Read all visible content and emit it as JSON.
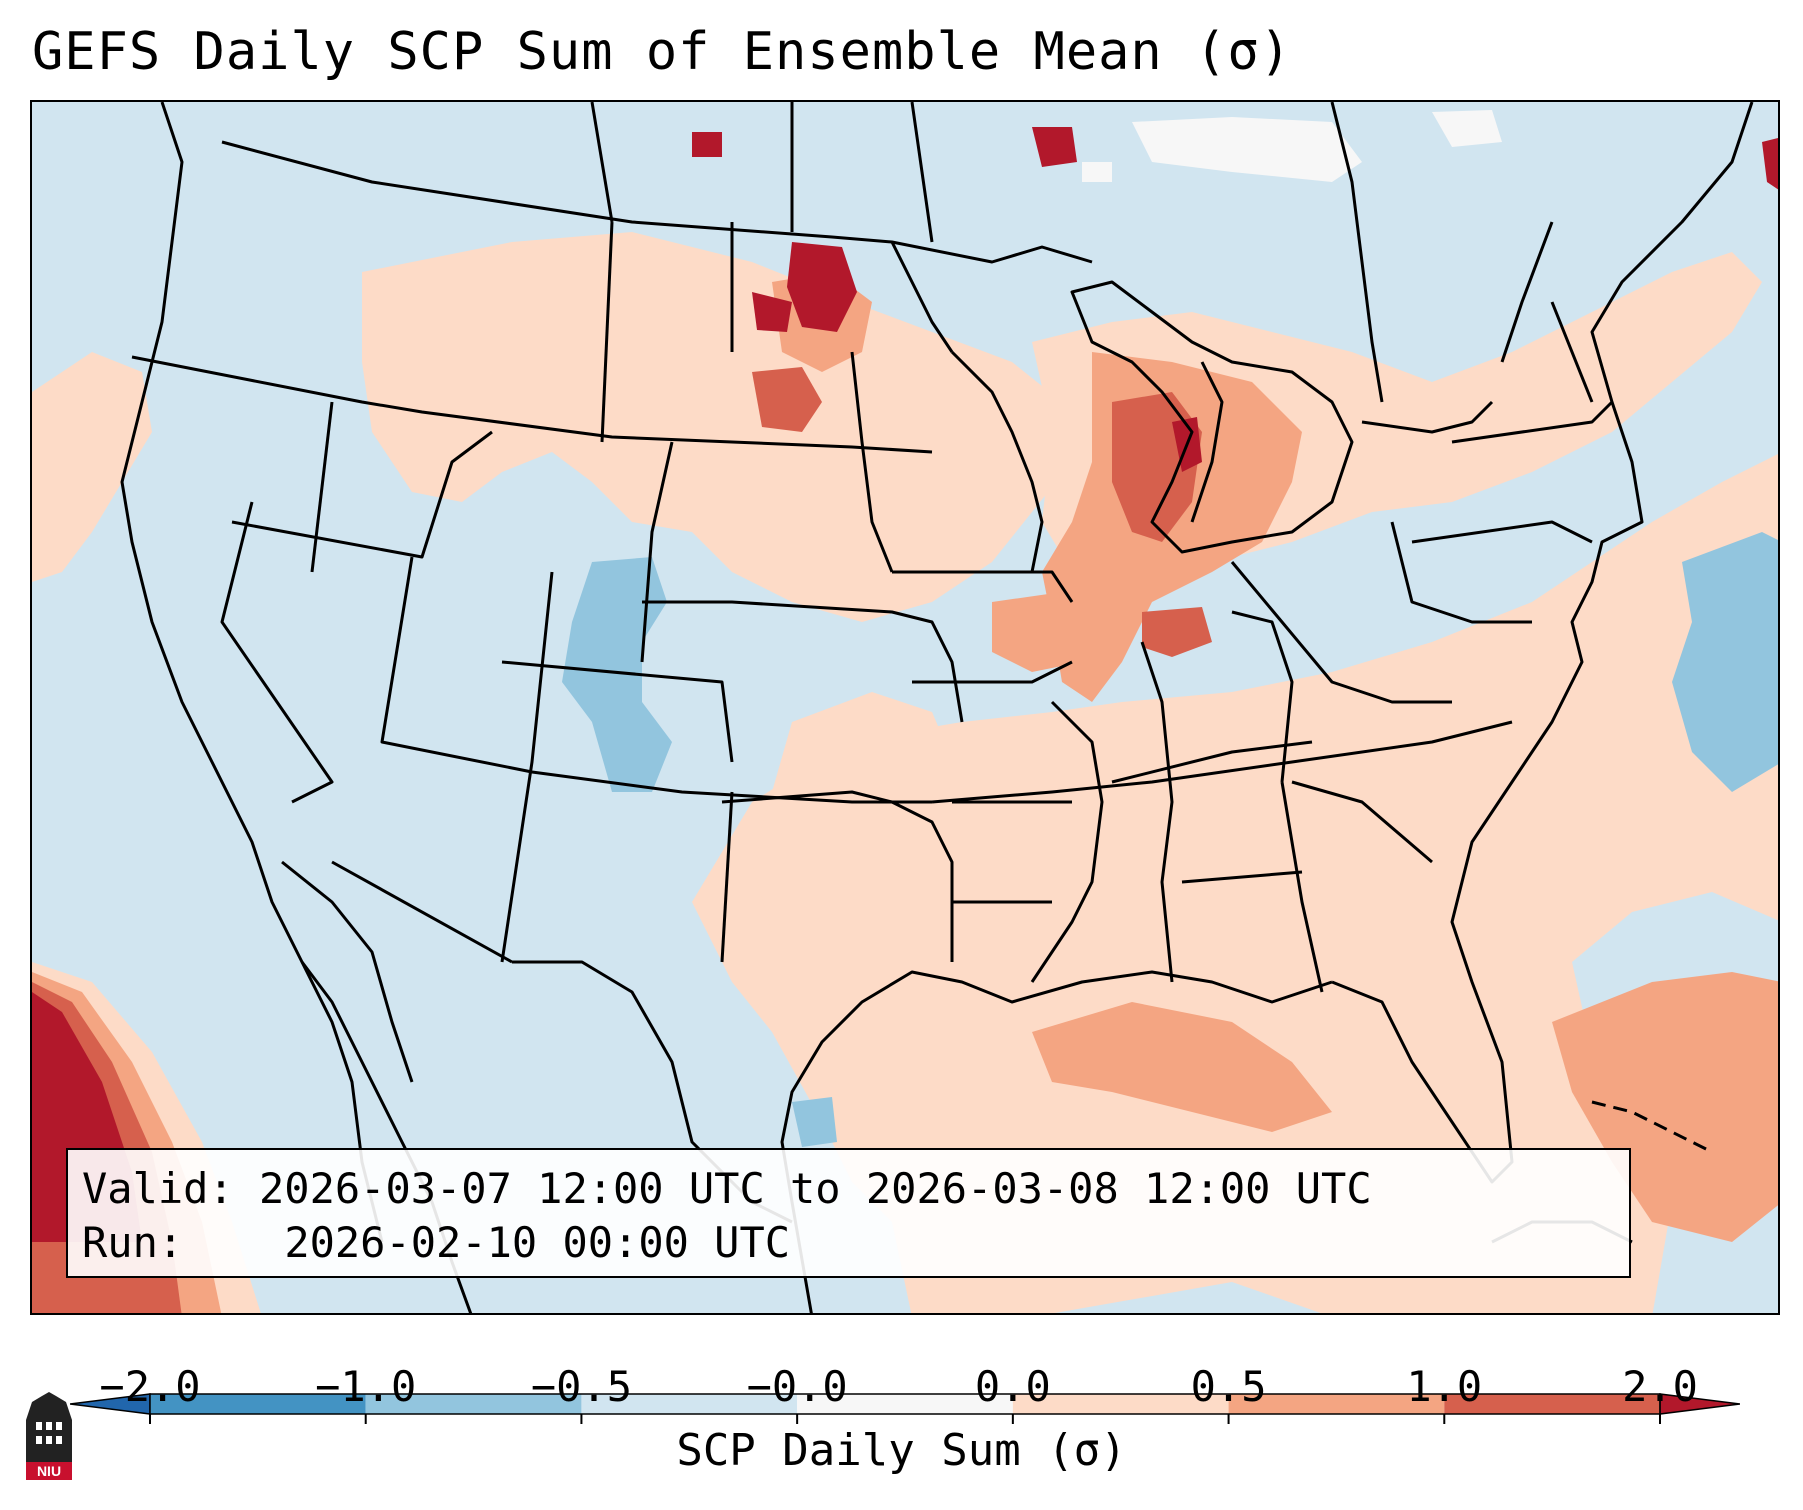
{
  "title": "GEFS Daily SCP Sum of Ensemble Mean (σ)",
  "info": {
    "valid_label": "Valid:",
    "valid_value": "2026-03-07 12:00 UTC to 2026-03-08 12:00 UTC",
    "run_label": "Run:",
    "run_value": "2026-02-10 00:00 UTC"
  },
  "colorbar": {
    "label": "SCP Daily Sum (σ)",
    "ticks": [
      "−2.0",
      "−1.0",
      "−0.5",
      "−0.0",
      "0.0",
      "0.5",
      "1.0",
      "2.0"
    ],
    "colors": [
      "#4393c3",
      "#92c5de",
      "#d1e5f0",
      "#f7f7f7",
      "#fddbc7",
      "#f4a582",
      "#d6604d",
      "#b2182b"
    ],
    "extend_low_color": "#2166ac",
    "extend_high_color": "#b2182b"
  },
  "colors": {
    "background": "#d1e5f0",
    "light_red": "#fddbc7",
    "medium_red": "#f4a582",
    "red": "#d6604d",
    "dark_red": "#b2182b",
    "light_blue": "#92c5de",
    "white": "#f7f7f7"
  },
  "logo": {
    "text": "NIU"
  }
}
